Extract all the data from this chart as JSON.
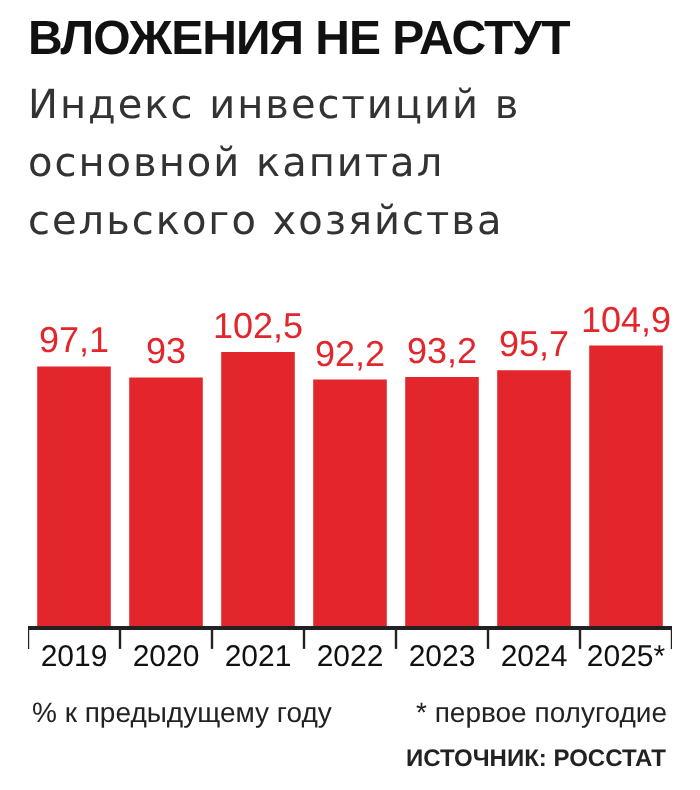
{
  "chart_data": {
    "type": "bar",
    "title": "ВЛОЖЕНИЯ НЕ РАСТУТ",
    "subtitle": "Индекс инвестиций в основной капитал сельского хозяйства",
    "categories": [
      "2019",
      "2020",
      "2021",
      "2022",
      "2023",
      "2024",
      "2025*"
    ],
    "values": [
      97.1,
      93,
      102.5,
      92.2,
      93.2,
      95.7,
      104.9
    ],
    "value_labels": [
      "97,1",
      "93",
      "102,5",
      "92,2",
      "93,2",
      "95,7",
      "104,9"
    ],
    "color": "#e3262b",
    "tick_labels": "x",
    "annotations": [
      "% к предыдущему году",
      "* первое полугодие",
      "ИСТОЧНИК: РОССТАТ"
    ]
  }
}
